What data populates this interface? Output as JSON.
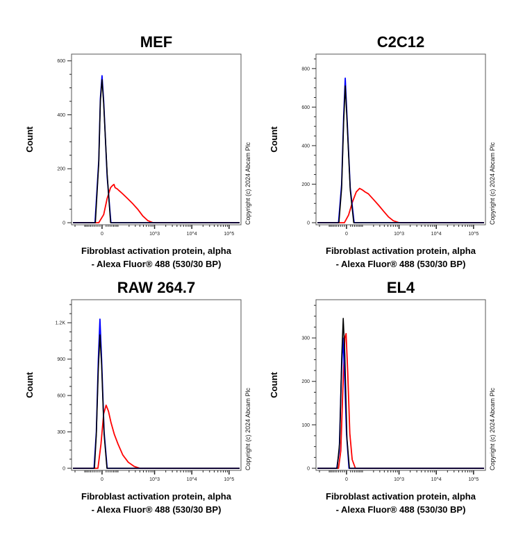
{
  "chart_data": [
    {
      "type": "line",
      "title": "MEF",
      "xlabel": [
        "Fibroblast activation protein, alpha",
        "- Alexa Fluor® 488 (530/30 BP)"
      ],
      "ylabel": "Count",
      "copyright": "Copyright (c) 2024 Abcam Plc",
      "x_scale": "biexponential",
      "x_ticks": [
        "0",
        "10^3",
        "10^4",
        "10^5"
      ],
      "y_ticks": [
        "0",
        "200",
        "400",
        "600"
      ],
      "ylim": [
        0,
        625
      ],
      "grid": false,
      "series": [
        {
          "color": "#ff0000",
          "points": [
            [
              -16,
              0
            ],
            [
              8,
              30
            ],
            [
              25,
              90
            ],
            [
              43,
              130
            ],
            [
              55,
              138
            ],
            [
              63,
              142
            ],
            [
              70,
              130
            ],
            [
              85,
              125
            ],
            [
              100,
              118
            ],
            [
              126,
              108
            ],
            [
              179,
              90
            ],
            [
              256,
              70
            ],
            [
              350,
              50
            ],
            [
              480,
              25
            ],
            [
              655,
              8
            ],
            [
              900,
              0
            ]
          ]
        },
        {
          "color": "#0000ff",
          "points": [
            [
              -35,
              0
            ],
            [
              -16,
              230
            ],
            [
              -8,
              460
            ],
            [
              0,
              545
            ],
            [
              8,
              450
            ],
            [
              25,
              170
            ],
            [
              45,
              0
            ]
          ]
        },
        {
          "color": "#000000",
          "points": [
            [
              -33,
              0
            ],
            [
              -16,
              220
            ],
            [
              -8,
              450
            ],
            [
              0,
              530
            ],
            [
              8,
              440
            ],
            [
              25,
              180
            ],
            [
              43,
              0
            ]
          ]
        }
      ]
    },
    {
      "type": "line",
      "title": "C2C12",
      "xlabel": [
        "Fibroblast activation protein, alpha",
        "- Alexa Fluor® 488 (530/30 BP)"
      ],
      "ylabel": "Count",
      "copyright": "Copyright (c) 2024 Abcam Plc",
      "x_scale": "biexponential",
      "x_ticks": [
        "0",
        "10^3",
        "10^4",
        "10^5"
      ],
      "y_ticks": [
        "0",
        "200",
        "400",
        "600",
        "800"
      ],
      "ylim": [
        0,
        875
      ],
      "grid": false,
      "series": [
        {
          "color": "#ff0000",
          "points": [
            [
              -10,
              0
            ],
            [
              10,
              40
            ],
            [
              30,
              110
            ],
            [
              50,
              160
            ],
            [
              70,
              178
            ],
            [
              90,
              170
            ],
            [
              110,
              160
            ],
            [
              140,
              150
            ],
            [
              200,
              120
            ],
            [
              280,
              90
            ],
            [
              380,
              60
            ],
            [
              520,
              30
            ],
            [
              700,
              10
            ],
            [
              1000,
              0
            ]
          ]
        },
        {
          "color": "#0000ff",
          "points": [
            [
              -40,
              0
            ],
            [
              -24,
              200
            ],
            [
              -14,
              550
            ],
            [
              -6,
              750
            ],
            [
              2,
              560
            ],
            [
              18,
              180
            ],
            [
              38,
              0
            ]
          ]
        },
        {
          "color": "#000000",
          "points": [
            [
              -38,
              0
            ],
            [
              -24,
              180
            ],
            [
              -14,
              520
            ],
            [
              -6,
              710
            ],
            [
              2,
              540
            ],
            [
              18,
              170
            ],
            [
              36,
              0
            ]
          ]
        }
      ]
    },
    {
      "type": "line",
      "title": "RAW 264.7",
      "xlabel": [
        "Fibroblast activation protein, alpha",
        "- Alexa Fluor® 488 (530/30 BP)"
      ],
      "ylabel": "Count",
      "copyright": "Copyright (c) 2024 Abcam Plc",
      "x_scale": "biexponential",
      "x_ticks": [
        "0",
        "10^3",
        "10^4",
        "10^5"
      ],
      "y_ticks": [
        "0",
        "300",
        "600",
        "900",
        "1.2K"
      ],
      "ylim": [
        0,
        1390
      ],
      "grid": false,
      "series": [
        {
          "color": "#ff0000",
          "points": [
            [
              -20,
              0
            ],
            [
              -5,
              200
            ],
            [
              8,
              450
            ],
            [
              20,
              520
            ],
            [
              32,
              470
            ],
            [
              45,
              380
            ],
            [
              65,
              280
            ],
            [
              90,
              200
            ],
            [
              130,
              110
            ],
            [
              190,
              50
            ],
            [
              280,
              15
            ],
            [
              400,
              0
            ]
          ]
        },
        {
          "color": "#0000ff",
          "points": [
            [
              -40,
              0
            ],
            [
              -28,
              300
            ],
            [
              -18,
              900
            ],
            [
              -10,
              1230
            ],
            [
              -2,
              900
            ],
            [
              10,
              300
            ],
            [
              25,
              0
            ]
          ]
        },
        {
          "color": "#000000",
          "points": [
            [
              -38,
              0
            ],
            [
              -28,
              280
            ],
            [
              -18,
              820
            ],
            [
              -10,
              1100
            ],
            [
              -2,
              850
            ],
            [
              10,
              280
            ],
            [
              24,
              0
            ]
          ]
        }
      ]
    },
    {
      "type": "line",
      "title": "EL4",
      "xlabel": [
        "Fibroblast activation protein, alpha",
        "- Alexa Fluor® 488 (530/30 BP)"
      ],
      "ylabel": "Count",
      "copyright": "Copyright (c) 2024 Abcam Plc",
      "x_scale": "biexponential",
      "x_ticks": [
        "0",
        "10^3",
        "10^4",
        "10^5"
      ],
      "y_ticks": [
        "0",
        "100",
        "200",
        "300"
      ],
      "ylim": [
        0,
        388
      ],
      "grid": false,
      "series": [
        {
          "color": "#ff0000",
          "points": [
            [
              -40,
              0
            ],
            [
              -28,
              40
            ],
            [
              -18,
              180
            ],
            [
              -8,
              300
            ],
            [
              -2,
              310
            ],
            [
              6,
              220
            ],
            [
              16,
              80
            ],
            [
              28,
              20
            ],
            [
              45,
              0
            ]
          ]
        },
        {
          "color": "#0000ff",
          "points": [
            [
              -50,
              0
            ],
            [
              -36,
              40
            ],
            [
              -26,
              200
            ],
            [
              -18,
              300
            ],
            [
              -10,
              230
            ],
            [
              0,
              80
            ],
            [
              12,
              0
            ]
          ]
        },
        {
          "color": "#000000",
          "points": [
            [
              -48,
              0
            ],
            [
              -34,
              60
            ],
            [
              -24,
              250
            ],
            [
              -16,
              345
            ],
            [
              -8,
              260
            ],
            [
              2,
              70
            ],
            [
              14,
              0
            ]
          ]
        }
      ]
    }
  ]
}
